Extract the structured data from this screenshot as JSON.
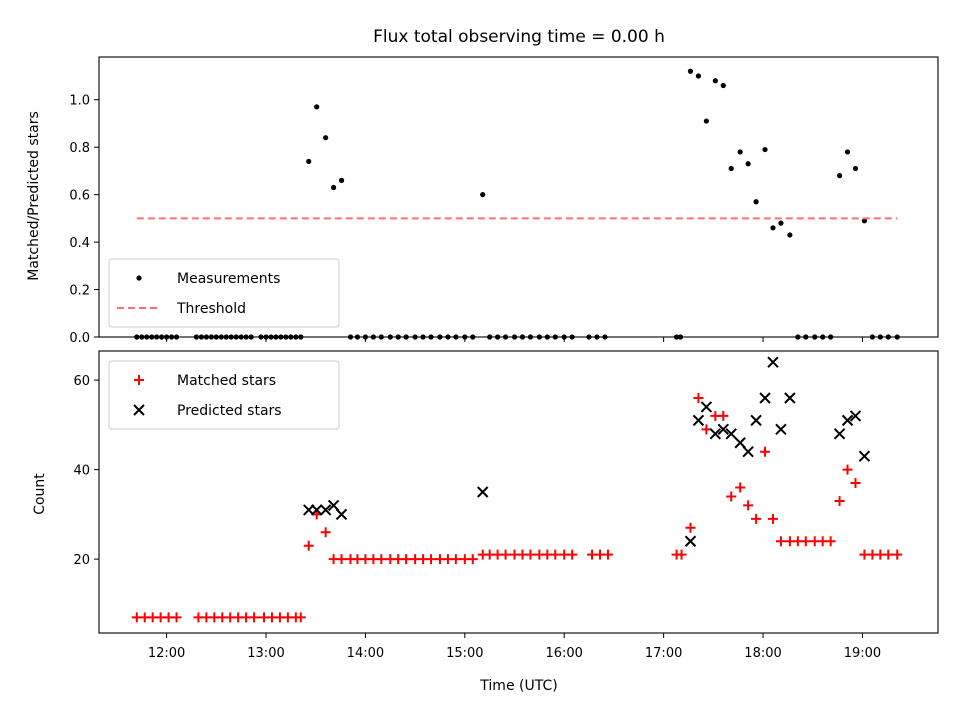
{
  "chart_data": [
    {
      "type": "scatter",
      "title": "Flux total observing time = 0.00 h",
      "xlabel": "",
      "ylabel": "Matched/Predicted stars",
      "xlim_hours": [
        11.32,
        19.76
      ],
      "ylim": [
        0,
        1.18
      ],
      "yticks": [
        0.0,
        0.2,
        0.4,
        0.6,
        0.8,
        1.0
      ],
      "ytick_labels": [
        "0.0",
        "0.2",
        "0.4",
        "0.6",
        "0.8",
        "1.0"
      ],
      "xticks_hours": [
        12,
        13,
        14,
        15,
        16,
        17,
        18,
        19
      ],
      "legend": {
        "placement": "lower-left",
        "entries": [
          "Measurements",
          "Threshold"
        ]
      },
      "series": [
        {
          "name": "Measurements",
          "marker": "dot",
          "color": "#000000",
          "x": [
            11.7,
            11.75,
            11.8,
            11.85,
            11.9,
            11.95,
            12.0,
            12.05,
            12.1,
            12.3,
            12.35,
            12.4,
            12.45,
            12.5,
            12.55,
            12.6,
            12.65,
            12.7,
            12.75,
            12.8,
            12.85,
            12.95,
            13.0,
            13.05,
            13.1,
            13.15,
            13.2,
            13.25,
            13.3,
            13.35,
            13.43,
            13.51,
            13.6,
            13.68,
            13.76,
            13.85,
            13.92,
            14.0,
            14.08,
            14.16,
            14.25,
            14.33,
            14.41,
            14.5,
            14.58,
            14.66,
            14.75,
            14.83,
            14.91,
            15.0,
            15.08,
            15.18,
            15.25,
            15.33,
            15.41,
            15.5,
            15.58,
            15.66,
            15.75,
            15.83,
            15.91,
            16.0,
            16.08,
            16.25,
            16.33,
            16.41,
            17.13,
            17.17,
            17.27,
            17.35,
            17.43,
            17.52,
            17.6,
            17.68,
            17.77,
            17.85,
            17.93,
            18.02,
            18.1,
            18.18,
            18.27,
            18.35,
            18.43,
            18.52,
            18.6,
            18.68,
            18.77,
            18.85,
            18.93,
            19.02,
            19.1,
            19.18,
            19.26,
            19.35
          ],
          "y": [
            0,
            0,
            0,
            0,
            0,
            0,
            0,
            0,
            0,
            0,
            0,
            0,
            0,
            0,
            0,
            0,
            0,
            0,
            0,
            0,
            0,
            0,
            0,
            0,
            0,
            0,
            0,
            0,
            0,
            0,
            0.74,
            0.97,
            0.84,
            0.63,
            0.66,
            0,
            0,
            0,
            0,
            0,
            0,
            0,
            0,
            0,
            0,
            0,
            0,
            0,
            0,
            0,
            0,
            0.6,
            0,
            0,
            0,
            0,
            0,
            0,
            0,
            0,
            0,
            0,
            0,
            0,
            0,
            0,
            0,
            0,
            1.12,
            1.1,
            0.91,
            1.08,
            1.06,
            0.71,
            0.78,
            0.73,
            0.57,
            0.79,
            0.46,
            0.48,
            0.43,
            0,
            0,
            0,
            0,
            0,
            0.68,
            0.78,
            0.71,
            0.49,
            0,
            0,
            0,
            0
          ]
        },
        {
          "name": "Threshold",
          "line": "dashed",
          "color": "#ff6f6f",
          "x": [
            11.7,
            19.35
          ],
          "y": [
            0.5,
            0.5
          ]
        }
      ]
    },
    {
      "type": "scatter",
      "title": "",
      "xlabel": "Time (UTC)",
      "ylabel": "Count",
      "xlim_hours": [
        11.32,
        19.76
      ],
      "ylim": [
        3.5,
        66.5
      ],
      "yticks": [
        20,
        40,
        60
      ],
      "ytick_labels": [
        "20",
        "40",
        "60"
      ],
      "xticks_hours": [
        12,
        13,
        14,
        15,
        16,
        17,
        18,
        19
      ],
      "xtick_labels": [
        "12:00",
        "13:00",
        "14:00",
        "15:00",
        "16:00",
        "17:00",
        "18:00",
        "19:00"
      ],
      "legend": {
        "placement": "upper-left",
        "entries": [
          "Matched stars",
          "Predicted stars"
        ]
      },
      "series": [
        {
          "name": "Matched stars",
          "marker": "plus",
          "color": "#ff0000",
          "x": [
            11.7,
            11.78,
            11.86,
            11.94,
            12.02,
            12.1,
            12.32,
            12.4,
            12.48,
            12.56,
            12.64,
            12.72,
            12.8,
            12.88,
            12.98,
            13.06,
            13.14,
            13.22,
            13.3,
            13.35,
            13.43,
            13.51,
            13.6,
            13.68,
            13.76,
            13.85,
            13.92,
            14.0,
            14.08,
            14.16,
            14.25,
            14.33,
            14.41,
            14.5,
            14.58,
            14.66,
            14.75,
            14.83,
            14.91,
            15.0,
            15.08,
            15.18,
            15.25,
            15.33,
            15.41,
            15.5,
            15.58,
            15.66,
            15.75,
            15.83,
            15.91,
            16.0,
            16.08,
            16.28,
            16.36,
            16.44,
            17.13,
            17.18,
            17.27,
            17.35,
            17.43,
            17.52,
            17.6,
            17.68,
            17.77,
            17.85,
            17.93,
            18.02,
            18.1,
            18.18,
            18.27,
            18.35,
            18.43,
            18.52,
            18.6,
            18.68,
            18.77,
            18.85,
            18.93,
            19.02,
            19.1,
            19.18,
            19.26,
            19.35
          ],
          "y": [
            7,
            7,
            7,
            7,
            7,
            7,
            7,
            7,
            7,
            7,
            7,
            7,
            7,
            7,
            7,
            7,
            7,
            7,
            7,
            7,
            23,
            30,
            26,
            20,
            20,
            20,
            20,
            20,
            20,
            20,
            20,
            20,
            20,
            20,
            20,
            20,
            20,
            20,
            20,
            20,
            20,
            21,
            21,
            21,
            21,
            21,
            21,
            21,
            21,
            21,
            21,
            21,
            21,
            21,
            21,
            21,
            21,
            21,
            27,
            56,
            49,
            52,
            52,
            34,
            36,
            32,
            29,
            44,
            29,
            24,
            24,
            24,
            24,
            24,
            24,
            24,
            33,
            40,
            37,
            21,
            21,
            21,
            21,
            21
          ]
        },
        {
          "name": "Predicted stars",
          "marker": "x",
          "color": "#000000",
          "x": [
            13.43,
            13.51,
            13.6,
            13.68,
            13.76,
            15.18,
            17.27,
            17.35,
            17.43,
            17.52,
            17.6,
            17.68,
            17.77,
            17.85,
            17.93,
            18.02,
            18.1,
            18.18,
            18.27,
            18.77,
            18.85,
            18.93,
            19.02
          ],
          "y": [
            31,
            31,
            31,
            32,
            30,
            35,
            24,
            51,
            54,
            48,
            49,
            48,
            46,
            44,
            51,
            56,
            64,
            49,
            56,
            48,
            51,
            52,
            43
          ]
        }
      ]
    }
  ]
}
